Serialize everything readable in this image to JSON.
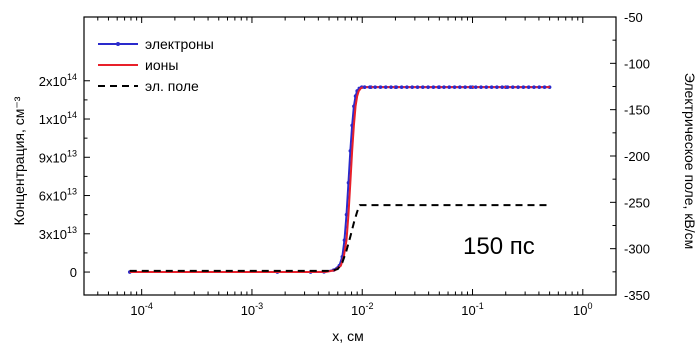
{
  "chart_data": {
    "type": "line",
    "title": "",
    "xlabel": "x, см",
    "ylabel": "Концентрация, см⁻³",
    "y2label": "Электрическое поле, кВ/см",
    "xscale": "log",
    "xlim": [
      3e-05,
      2
    ],
    "ylim": [
      -18000000000000,
      200000000000000
    ],
    "y2lim": [
      -350,
      -50
    ],
    "x_tick_labels": [
      {
        "base": "10",
        "exp": "-4",
        "x": 0.0001
      },
      {
        "base": "10",
        "exp": "-3",
        "x": 0.001
      },
      {
        "base": "10",
        "exp": "-2",
        "x": 0.01
      },
      {
        "base": "10",
        "exp": "-1",
        "x": 0.1
      },
      {
        "base": "10",
        "exp": "0",
        "x": 1
      }
    ],
    "y_tick_labels": [
      {
        "mant": "0",
        "exp": "",
        "y": 0
      },
      {
        "mant": "3x10",
        "exp": "13",
        "y": 30000000000000
      },
      {
        "mant": "6x10",
        "exp": "13",
        "y": 60000000000000
      },
      {
        "mant": "9x10",
        "exp": "13",
        "y": 90000000000000
      },
      {
        "mant": "1x10",
        "exp": "14",
        "y": 120000000000000
      },
      {
        "mant": "2x10",
        "exp": "14",
        "y": 150000000000000
      }
    ],
    "y2_tick_labels": [
      "-50",
      "-100",
      "-150",
      "-200",
      "-250",
      "-300",
      "-350"
    ],
    "y2_ticks": [
      -50,
      -100,
      -150,
      -200,
      -250,
      -300,
      -350
    ],
    "grid": false,
    "legend_position": "top-left",
    "series": [
      {
        "name": "электроны",
        "axis": "left",
        "color": "#2a2acc",
        "style": "solid-markers",
        "x": [
          7.8e-05,
          0.0017,
          0.0034,
          0.0045,
          0.0055,
          0.0062,
          0.0066,
          0.0069,
          0.0072,
          0.0075,
          0.0078,
          0.0081,
          0.0084,
          0.0087,
          0.009,
          0.0094,
          0.0099,
          0.0105,
          0.012,
          0.02,
          0.05,
          0.1,
          0.2,
          0.5
        ],
        "y": [
          0,
          0,
          0,
          100000000000,
          1500000000000,
          5000000000000,
          12000000000000,
          25000000000000,
          45000000000000,
          70000000000000,
          95000000000000,
          115000000000000,
          130000000000000,
          138000000000000,
          142000000000000,
          144000000000000,
          145000000000000,
          145000000000000,
          145000000000000,
          145000000000000,
          145000000000000,
          145000000000000,
          145000000000000,
          145000000000000
        ]
      },
      {
        "name": "ионы",
        "axis": "left",
        "color": "#e8202a",
        "style": "solid",
        "x": [
          7.8e-05,
          0.0017,
          0.0034,
          0.0047,
          0.0057,
          0.0064,
          0.0068,
          0.0072,
          0.0075,
          0.0078,
          0.0081,
          0.0084,
          0.0087,
          0.009,
          0.0093,
          0.0097,
          0.0102,
          0.0108,
          0.012,
          0.02,
          0.05,
          0.1,
          0.2,
          0.5
        ],
        "y": [
          0,
          0,
          0,
          100000000000,
          1500000000000,
          5000000000000,
          12000000000000,
          25000000000000,
          45000000000000,
          70000000000000,
          95000000000000,
          115000000000000,
          130000000000000,
          138000000000000,
          142000000000000,
          144000000000000,
          145000000000000,
          145000000000000,
          145000000000000,
          145000000000000,
          145000000000000,
          145000000000000,
          145000000000000,
          145000000000000
        ]
      },
      {
        "name": "эл. поле",
        "axis": "right",
        "color": "#000000",
        "style": "dashed",
        "x": [
          7.8e-05,
          0.0017,
          0.0034,
          0.0052,
          0.006,
          0.0066,
          0.0072,
          0.0078,
          0.0084,
          0.009,
          0.0095,
          0.01,
          0.05,
          0.1,
          0.5
        ],
        "y": [
          -324,
          -324,
          -324,
          -324,
          -322,
          -315,
          -302,
          -287,
          -272,
          -260,
          -253,
          -253,
          -253,
          -253,
          -253
        ]
      }
    ],
    "annotations": [
      {
        "text": "150 пс"
      }
    ]
  }
}
